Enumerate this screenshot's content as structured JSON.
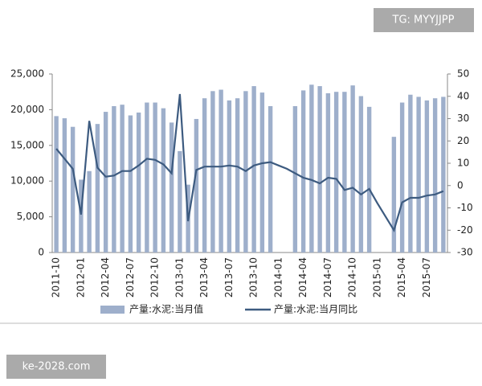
{
  "chart_data": {
    "type": "bar_line",
    "categories": [
      "2011-10",
      null,
      null,
      "2012-01",
      null,
      null,
      "2012-04",
      null,
      null,
      "2012-07",
      null,
      null,
      "2012-10",
      null,
      null,
      "2013-01",
      null,
      null,
      "2013-04",
      null,
      null,
      "2013-07",
      null,
      null,
      "2013-10",
      null,
      null,
      "2014-01",
      null,
      null,
      "2014-04",
      null,
      null,
      "2014-07",
      null,
      null,
      "2014-10",
      null,
      null,
      "2015-01",
      null,
      null,
      "2015-04",
      null,
      null,
      "2015-07",
      null,
      null
    ],
    "series": [
      {
        "name": "产量:水泥:当月值",
        "color": "#9eafcb",
        "kind": "bar",
        "values": [
          19100,
          18800,
          17600,
          10200,
          11400,
          18000,
          19700,
          20500,
          20700,
          19200,
          19600,
          21000,
          21000,
          20200,
          18200,
          14200,
          9500,
          18700,
          21600,
          22600,
          22800,
          21300,
          21600,
          22600,
          23300,
          22400,
          20500,
          null,
          null,
          20500,
          22700,
          23500,
          23300,
          22300,
          22500,
          22500,
          23400,
          21900,
          20400,
          null,
          null,
          16200,
          21000,
          22100,
          21800,
          21300,
          21600,
          21800
        ]
      },
      {
        "name": "产量:水泥:当月同比",
        "color": "#3d5b80",
        "kind": "line",
        "axis": "y2",
        "values": [
          16.5,
          12,
          7.5,
          -13,
          29,
          8,
          4,
          4.5,
          6.5,
          6.5,
          9,
          12,
          11.5,
          9.5,
          5.5,
          41,
          -16,
          7,
          8.5,
          8.5,
          8.5,
          9,
          8.5,
          6.5,
          9,
          10,
          10.5,
          9,
          7.5,
          5.5,
          3.5,
          2.5,
          1,
          3.5,
          3,
          -2,
          -1,
          -4,
          -1.5,
          -8,
          -14,
          -20,
          -7.5,
          -5.5,
          -5.5,
          -4.5,
          -4,
          -2.5
        ]
      }
    ],
    "ylim": [
      0,
      25000
    ],
    "yticks": [
      0,
      {
        "value": 5000,
        "label": "5,000"
      },
      {
        "value": 10000,
        "label": "10,000"
      },
      {
        "value": 15000,
        "label": "15,000"
      },
      {
        "value": 20000,
        "label": "20,000"
      },
      {
        "value": 25000,
        "label": "25,000"
      }
    ],
    "y2lim": [
      -30,
      50
    ],
    "y2ticks": [
      -30,
      -20,
      -10,
      0,
      10,
      20,
      30,
      40,
      50
    ],
    "legend": "bottom",
    "watermarks": [
      "TG: MYYJJPP",
      "ke-2028.com"
    ]
  }
}
